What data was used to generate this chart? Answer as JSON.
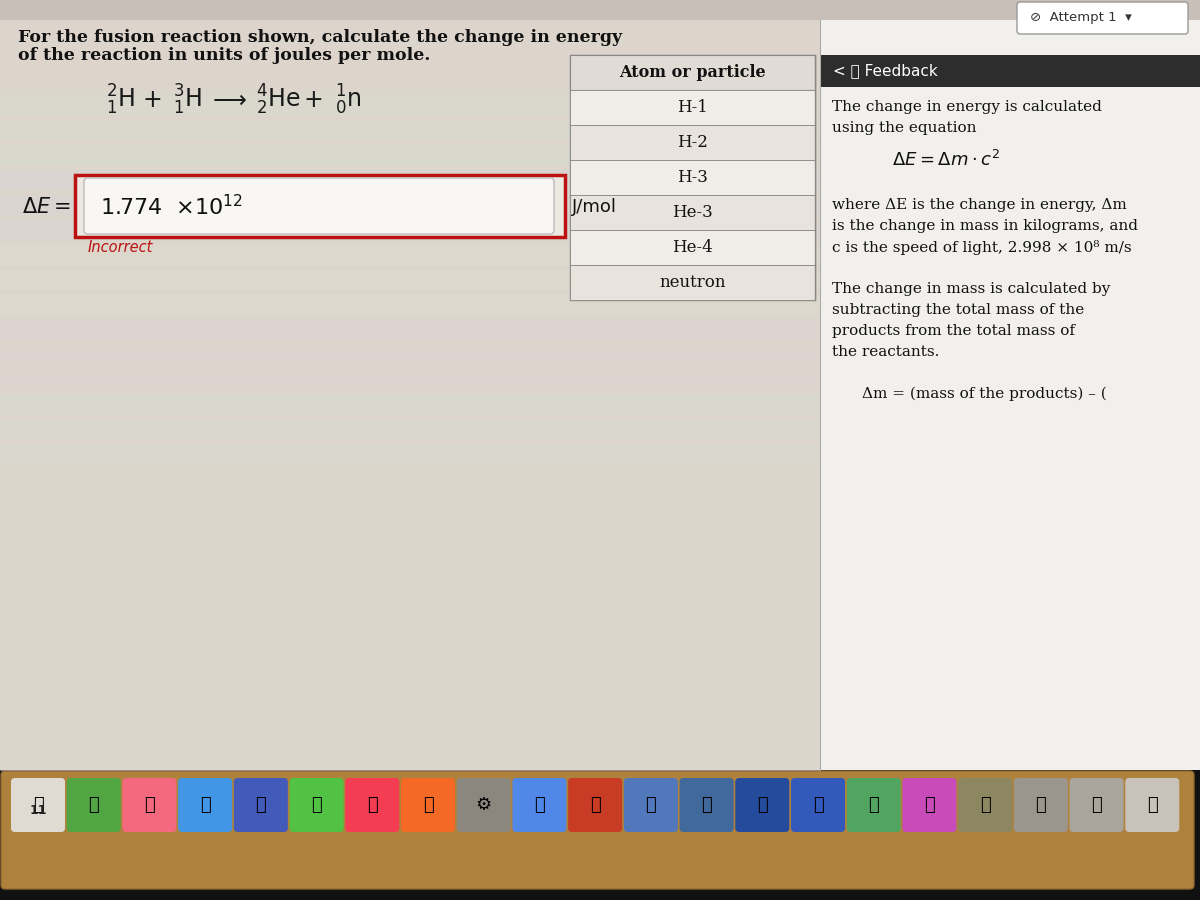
{
  "bg_main": "#c8c0b8",
  "bg_left": "#ddd8d0",
  "bg_right": "#f0eeea",
  "bg_feedback_header": "#2a2a2a",
  "title_line1": "For the fusion reaction shown, calculate the change in energy",
  "title_line2": "of the reaction in units of joules per mole.",
  "input_value": "1.774  ×10¹²",
  "unit_label": "J/mol",
  "incorrect_label": "Incorrect",
  "attempt_text": "⊘  Attempt 1  ▾",
  "feedback_title": "<  💬 Feedback",
  "table_header": "Atom or particle",
  "table_rows": [
    "H-1",
    "H-2",
    "H-3",
    "He-3",
    "He-4",
    "neutron"
  ],
  "feedback_lines": [
    "The change in energy is calculated",
    "using the equation",
    "",
    "equation",
    "",
    "where ΔE is the change in energy, Δm",
    "is the change in mass in kilograms, and",
    "c is the speed of light, 2.998 × 10⁸ m/s",
    "",
    "The change in mass is calculated by",
    "subtracting the total mass of the",
    "products from the total mass of",
    "the reactants.",
    "",
    "Δm = (mass of the products) – ("
  ],
  "dock_bg": "#b8954a",
  "content_border": "#888880"
}
